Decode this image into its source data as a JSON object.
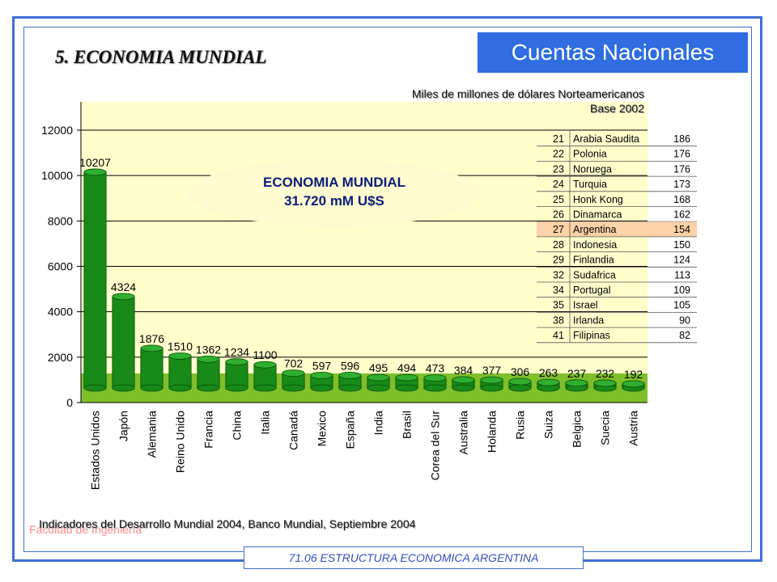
{
  "header": {
    "title": "Cuentas Nacionales"
  },
  "slide_title": "5. ECONOMIA MUNDIAL",
  "units_note": {
    "line1": "Miles de millones de dólares Norteamericanos",
    "line2": "Base 2002"
  },
  "callout": {
    "line1": "ECONOMIA MUNDIAL",
    "line2": "31.720 mM U$S"
  },
  "source": "Indicadores del Desarrollo Mundial 2004, Banco Mundial, Septiembre 2004",
  "faculty": "Facultad de Ingeniería",
  "footer": "71.06 ESTRUCTURA ECONOMICA ARGENTINA",
  "colors": {
    "accent": "#2f6de0",
    "bar": "#178a17",
    "plot_bg": "#ffffcc",
    "floor": "#7fbf2a",
    "highlight": "#fcd2a8"
  },
  "chart_data": {
    "type": "bar",
    "categories": [
      "Estados Unidos",
      "Japón",
      "Alemania",
      "Reino Unido",
      "Francia",
      "China",
      "Italia",
      "Canadá",
      "Mexico",
      "España",
      "India",
      "Brasil",
      "Corea del Sur",
      "Australia",
      "Holanda",
      "Rusia",
      "Suiza",
      "Belgica",
      "Suecia",
      "Austria"
    ],
    "values": [
      10207,
      4324,
      1876,
      1510,
      1362,
      1234,
      1100,
      702,
      597,
      596,
      495,
      494,
      473,
      384,
      377,
      306,
      263,
      237,
      232,
      192
    ],
    "ylim": [
      0,
      12000
    ],
    "yticks": [
      "0",
      "2000",
      "4000",
      "6000",
      "8000",
      "10000",
      "12000"
    ],
    "grid": true
  },
  "ranking_table": [
    {
      "rank": "21",
      "country": "Arabia Saudita",
      "value": "186",
      "highlight": false
    },
    {
      "rank": "22",
      "country": "Polonia",
      "value": "176",
      "highlight": false
    },
    {
      "rank": "23",
      "country": "Noruega",
      "value": "176",
      "highlight": false
    },
    {
      "rank": "24",
      "country": "Turquia",
      "value": "173",
      "highlight": false
    },
    {
      "rank": "25",
      "country": "Honk Kong",
      "value": "168",
      "highlight": false
    },
    {
      "rank": "26",
      "country": "Dinamarca",
      "value": "162",
      "highlight": false
    },
    {
      "rank": "27",
      "country": "Argentina",
      "value": "154",
      "highlight": true
    },
    {
      "rank": "28",
      "country": "Indonesia",
      "value": "150",
      "highlight": false
    },
    {
      "rank": "29",
      "country": "Finlandia",
      "value": "124",
      "highlight": false
    },
    {
      "rank": "32",
      "country": "Sudafrica",
      "value": "113",
      "highlight": false
    },
    {
      "rank": "34",
      "country": "Portugal",
      "value": "109",
      "highlight": false
    },
    {
      "rank": "35",
      "country": "Israel",
      "value": "105",
      "highlight": false
    },
    {
      "rank": "38",
      "country": "Irlanda",
      "value": "90",
      "highlight": false
    },
    {
      "rank": "41",
      "country": "Filipinas",
      "value": "82",
      "highlight": false
    }
  ]
}
